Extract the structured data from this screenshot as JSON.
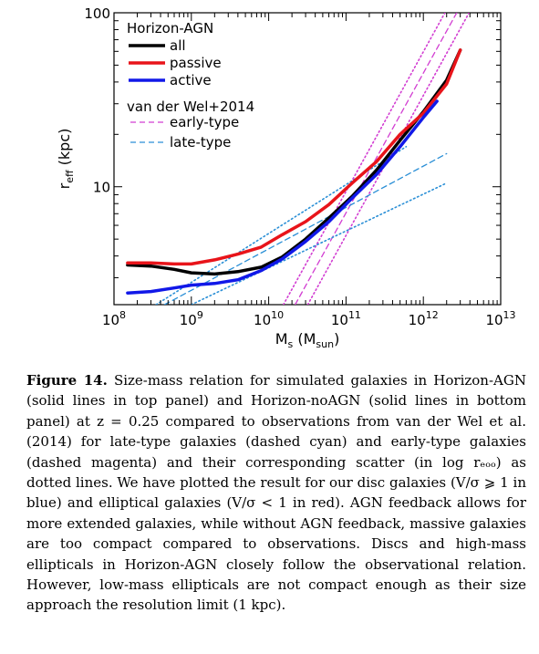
{
  "chart_data": {
    "type": "line",
    "xlabel": "Mₛ (Mₛᵤₙ)",
    "xlabel_main": "M",
    "xlabel_sub": "s",
    "xlabel_unit_main": "M",
    "xlabel_unit_sub": "sun",
    "ylabel_main": "r",
    "ylabel_sub": "eff",
    "ylabel_unit": "(kpc)",
    "x_scale": "log",
    "y_scale": "log",
    "xlim": [
      100000000.0,
      10000000000000.0
    ],
    "ylim": [
      2.1,
      100
    ],
    "x_ticks": [
      {
        "value": 100000000.0,
        "base": "10",
        "exp": "8"
      },
      {
        "value": 1000000000.0,
        "base": "10",
        "exp": "9"
      },
      {
        "value": 10000000000.0,
        "base": "10",
        "exp": "10"
      },
      {
        "value": 100000000000.0,
        "base": "10",
        "exp": "11"
      },
      {
        "value": 1000000000000.0,
        "base": "10",
        "exp": "12"
      },
      {
        "value": 10000000000000.0,
        "base": "10",
        "exp": "13"
      }
    ],
    "y_ticks": [
      {
        "value": 10,
        "label": "10"
      },
      {
        "value": 100,
        "label": "100"
      }
    ],
    "grid": false,
    "legend_placement": "top-left",
    "legend_groups": [
      {
        "title": "Horizon-AGN",
        "entries": [
          "all",
          "passive",
          "active"
        ]
      },
      {
        "title": "van der Wel+2014",
        "entries": [
          "early-type",
          "late-type"
        ]
      }
    ],
    "series": [
      {
        "name": "all",
        "color": "#000000",
        "style": "solid",
        "x": [
          150000000.0,
          300000000.0,
          600000000.0,
          1000000000.0,
          2000000000.0,
          4000000000.0,
          8000000000.0,
          15000000000.0,
          30000000000.0,
          60000000000.0,
          120000000000.0,
          250000000000.0,
          500000000000.0,
          1000000000000.0,
          2000000000000.0,
          3000000000000.0
        ],
        "y": [
          3.55,
          3.5,
          3.35,
          3.2,
          3.15,
          3.25,
          3.45,
          3.95,
          5.0,
          6.6,
          8.8,
          12.5,
          18.5,
          27.0,
          41.0,
          61.0
        ]
      },
      {
        "name": "passive",
        "color": "#e8141a",
        "style": "solid",
        "x": [
          150000000.0,
          300000000.0,
          600000000.0,
          1000000000.0,
          2000000000.0,
          4000000000.0,
          8000000000.0,
          15000000000.0,
          30000000000.0,
          60000000000.0,
          120000000000.0,
          250000000000.0,
          500000000000.0,
          1000000000000.0,
          2000000000000.0,
          3000000000000.0
        ],
        "y": [
          3.65,
          3.65,
          3.6,
          3.6,
          3.8,
          4.1,
          4.5,
          5.3,
          6.3,
          7.9,
          10.5,
          14.0,
          20.0,
          26.5,
          39.0,
          61.0
        ]
      },
      {
        "name": "active",
        "color": "#1118e8",
        "style": "solid",
        "x": [
          150000000.0,
          300000000.0,
          600000000.0,
          1000000000.0,
          2000000000.0,
          4000000000.0,
          8000000000.0,
          15000000000.0,
          30000000000.0,
          60000000000.0,
          120000000000.0,
          250000000000.0,
          500000000000.0,
          1000000000000.0,
          1500000000000.0
        ],
        "y": [
          2.45,
          2.5,
          2.62,
          2.72,
          2.78,
          2.92,
          3.3,
          3.85,
          4.85,
          6.3,
          8.6,
          11.8,
          17.0,
          25.0,
          31.0
        ]
      }
    ],
    "reference_lines": [
      {
        "name": "early-type",
        "color": "#d23ed2",
        "style": "dashed",
        "x": [
          22000000000.0,
          2700000000000.0
        ],
        "y": [
          2.1,
          100
        ]
      },
      {
        "name": "",
        "color": "#d23ed2",
        "style": "dotted",
        "x": [
          15500000000.0,
          1900000000000.0
        ],
        "y": [
          2.1,
          100
        ]
      },
      {
        "name": "",
        "color": "#d23ed2",
        "style": "dotted",
        "x": [
          32000000000.0,
          3900000000000.0
        ],
        "y": [
          2.1,
          100
        ]
      },
      {
        "name": "late-type",
        "color": "#2a8fd6",
        "style": "dashed",
        "x": [
          450000000.0,
          2000000000000.0
        ],
        "y": [
          2.1,
          15.5
        ]
      },
      {
        "name": "",
        "color": "#2a8fd6",
        "style": "dotted",
        "x": [
          1000000000.0,
          2000000000000.0
        ],
        "y": [
          2.1,
          10.5
        ]
      },
      {
        "name": "",
        "color": "#2a8fd6",
        "style": "dotted",
        "x": [
          350000000.0,
          600000000000.0
        ],
        "y": [
          2.1,
          17.0
        ]
      }
    ]
  },
  "caption": {
    "label": "Figure 14.",
    "text": "Size-mass relation for simulated galaxies in Horizon-AGN (solid lines in top panel) and Horizon-noAGN (solid lines in bottom panel) at z = 0.25 compared to observations from van der Wel et al. (2014) for late-type galaxies (dashed cyan) and early-type galaxies (dashed magenta) and their corresponding scatter (in log rₑₒₒ) as dotted lines. We have plotted the result for our disc galaxies (V/σ ⩾ 1 in blue) and elliptical galaxies (V/σ < 1 in red). AGN feedback allows for more extended galaxies, while without AGN feedback, massive galaxies are too compact compared to observations. Discs and high-mass ellipticals in Horizon-AGN closely follow the observational relation. However, low-mass ellipticals are not compact enough as their size approach the resolution limit (1 kpc)."
  }
}
